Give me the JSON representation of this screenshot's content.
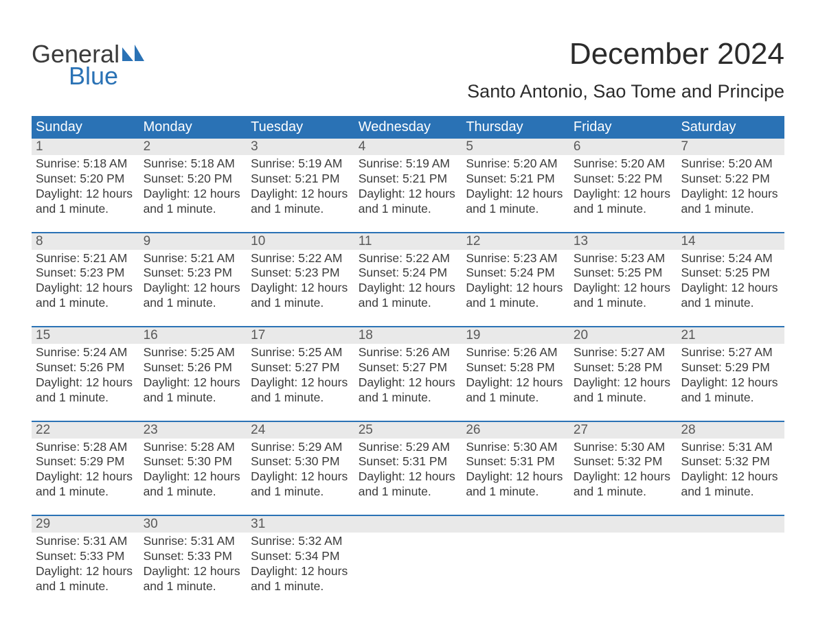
{
  "logo": {
    "text1": "General",
    "text2": "Blue",
    "shape_color": "#2a72b5"
  },
  "title": "December 2024",
  "location": "Santo Antonio, Sao Tome and Principe",
  "colors": {
    "header_bg": "#2a72b5",
    "header_text": "#ffffff",
    "daynum_bg": "#e9e9e9",
    "daynum_text": "#595959",
    "border": "#2a72b5",
    "body_text": "#3b3b3b",
    "background": "#ffffff"
  },
  "fonts": {
    "title_pt": 44,
    "location_pt": 27,
    "header_pt": 20,
    "daynum_pt": 19,
    "body_pt": 17.5,
    "family": "Arial"
  },
  "day_headers": [
    "Sunday",
    "Monday",
    "Tuesday",
    "Wednesday",
    "Thursday",
    "Friday",
    "Saturday"
  ],
  "daylight_text": "Daylight: 12 hours and 1 minute.",
  "weeks": [
    [
      {
        "num": "1",
        "sunrise": "Sunrise: 5:18 AM",
        "sunset": "Sunset: 5:20 PM"
      },
      {
        "num": "2",
        "sunrise": "Sunrise: 5:18 AM",
        "sunset": "Sunset: 5:20 PM"
      },
      {
        "num": "3",
        "sunrise": "Sunrise: 5:19 AM",
        "sunset": "Sunset: 5:21 PM"
      },
      {
        "num": "4",
        "sunrise": "Sunrise: 5:19 AM",
        "sunset": "Sunset: 5:21 PM"
      },
      {
        "num": "5",
        "sunrise": "Sunrise: 5:20 AM",
        "sunset": "Sunset: 5:21 PM"
      },
      {
        "num": "6",
        "sunrise": "Sunrise: 5:20 AM",
        "sunset": "Sunset: 5:22 PM"
      },
      {
        "num": "7",
        "sunrise": "Sunrise: 5:20 AM",
        "sunset": "Sunset: 5:22 PM"
      }
    ],
    [
      {
        "num": "8",
        "sunrise": "Sunrise: 5:21 AM",
        "sunset": "Sunset: 5:23 PM"
      },
      {
        "num": "9",
        "sunrise": "Sunrise: 5:21 AM",
        "sunset": "Sunset: 5:23 PM"
      },
      {
        "num": "10",
        "sunrise": "Sunrise: 5:22 AM",
        "sunset": "Sunset: 5:23 PM"
      },
      {
        "num": "11",
        "sunrise": "Sunrise: 5:22 AM",
        "sunset": "Sunset: 5:24 PM"
      },
      {
        "num": "12",
        "sunrise": "Sunrise: 5:23 AM",
        "sunset": "Sunset: 5:24 PM"
      },
      {
        "num": "13",
        "sunrise": "Sunrise: 5:23 AM",
        "sunset": "Sunset: 5:25 PM"
      },
      {
        "num": "14",
        "sunrise": "Sunrise: 5:24 AM",
        "sunset": "Sunset: 5:25 PM"
      }
    ],
    [
      {
        "num": "15",
        "sunrise": "Sunrise: 5:24 AM",
        "sunset": "Sunset: 5:26 PM"
      },
      {
        "num": "16",
        "sunrise": "Sunrise: 5:25 AM",
        "sunset": "Sunset: 5:26 PM"
      },
      {
        "num": "17",
        "sunrise": "Sunrise: 5:25 AM",
        "sunset": "Sunset: 5:27 PM"
      },
      {
        "num": "18",
        "sunrise": "Sunrise: 5:26 AM",
        "sunset": "Sunset: 5:27 PM"
      },
      {
        "num": "19",
        "sunrise": "Sunrise: 5:26 AM",
        "sunset": "Sunset: 5:28 PM"
      },
      {
        "num": "20",
        "sunrise": "Sunrise: 5:27 AM",
        "sunset": "Sunset: 5:28 PM"
      },
      {
        "num": "21",
        "sunrise": "Sunrise: 5:27 AM",
        "sunset": "Sunset: 5:29 PM"
      }
    ],
    [
      {
        "num": "22",
        "sunrise": "Sunrise: 5:28 AM",
        "sunset": "Sunset: 5:29 PM"
      },
      {
        "num": "23",
        "sunrise": "Sunrise: 5:28 AM",
        "sunset": "Sunset: 5:30 PM"
      },
      {
        "num": "24",
        "sunrise": "Sunrise: 5:29 AM",
        "sunset": "Sunset: 5:30 PM"
      },
      {
        "num": "25",
        "sunrise": "Sunrise: 5:29 AM",
        "sunset": "Sunset: 5:31 PM"
      },
      {
        "num": "26",
        "sunrise": "Sunrise: 5:30 AM",
        "sunset": "Sunset: 5:31 PM"
      },
      {
        "num": "27",
        "sunrise": "Sunrise: 5:30 AM",
        "sunset": "Sunset: 5:32 PM"
      },
      {
        "num": "28",
        "sunrise": "Sunrise: 5:31 AM",
        "sunset": "Sunset: 5:32 PM"
      }
    ],
    [
      {
        "num": "29",
        "sunrise": "Sunrise: 5:31 AM",
        "sunset": "Sunset: 5:33 PM"
      },
      {
        "num": "30",
        "sunrise": "Sunrise: 5:31 AM",
        "sunset": "Sunset: 5:33 PM"
      },
      {
        "num": "31",
        "sunrise": "Sunrise: 5:32 AM",
        "sunset": "Sunset: 5:34 PM"
      },
      {
        "num": "",
        "sunrise": "",
        "sunset": ""
      },
      {
        "num": "",
        "sunrise": "",
        "sunset": ""
      },
      {
        "num": "",
        "sunrise": "",
        "sunset": ""
      },
      {
        "num": "",
        "sunrise": "",
        "sunset": ""
      }
    ]
  ]
}
